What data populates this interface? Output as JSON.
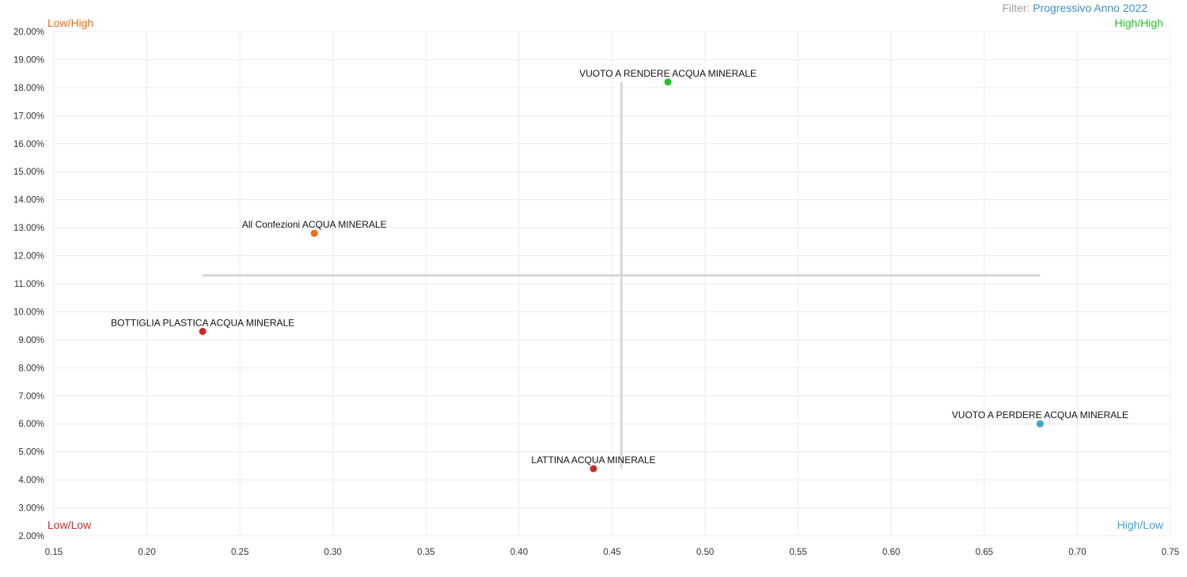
{
  "filter": {
    "label": "Filter:",
    "value": "Progressivo Anno 2022"
  },
  "chart_data": {
    "type": "scatter",
    "title": "",
    "xlabel": "",
    "ylabel": "",
    "xlim": [
      0.15,
      0.75
    ],
    "ylim": [
      0.02,
      0.2
    ],
    "x_ticks": [
      0.15,
      0.2,
      0.25,
      0.3,
      0.35,
      0.4,
      0.45,
      0.5,
      0.55,
      0.6,
      0.65,
      0.7,
      0.75
    ],
    "x_tick_labels": [
      "0.15",
      "0.20",
      "0.25",
      "0.30",
      "0.35",
      "0.40",
      "0.45",
      "0.50",
      "0.55",
      "0.60",
      "0.65",
      "0.70",
      "0.75"
    ],
    "y_ticks": [
      0.02,
      0.03,
      0.04,
      0.05,
      0.06,
      0.07,
      0.08,
      0.09,
      0.1,
      0.11,
      0.12,
      0.13,
      0.14,
      0.15,
      0.16,
      0.17,
      0.18,
      0.19,
      0.2
    ],
    "y_tick_labels": [
      "2.00%",
      "3.00%",
      "4.00%",
      "5.00%",
      "6.00%",
      "7.00%",
      "8.00%",
      "9.00%",
      "10.00%",
      "11.00%",
      "12.00%",
      "13.00%",
      "14.00%",
      "15.00%",
      "16.00%",
      "17.00%",
      "18.00%",
      "19.00%",
      "20.00%"
    ],
    "grid": true,
    "points": [
      {
        "label": "VUOTO A RENDERE ACQUA MINERALE",
        "x": 0.48,
        "y": 0.182,
        "color": "#22c322"
      },
      {
        "label": "All Confezioni ACQUA MINERALE",
        "x": 0.29,
        "y": 0.128,
        "color": "#f26a10"
      },
      {
        "label": "BOTTIGLIA PLASTICA ACQUA MINERALE",
        "x": 0.23,
        "y": 0.093,
        "color": "#cc2a2a"
      },
      {
        "label": "VUOTO A PERDERE ACQUA MINERALE",
        "x": 0.68,
        "y": 0.06,
        "color": "#3aa3d6"
      },
      {
        "label": "LATTINA ACQUA MINERALE",
        "x": 0.44,
        "y": 0.044,
        "color": "#cc2a2a"
      }
    ],
    "reference_lines": {
      "vertical_x": 0.455,
      "vertical_y_range": [
        0.044,
        0.182
      ],
      "horizontal_y": 0.113,
      "horizontal_x_range": [
        0.23,
        0.68
      ],
      "color": "#d6d6d6"
    },
    "quadrants": [
      {
        "label": "Low/High",
        "position": "top-left",
        "color": "#f26a10"
      },
      {
        "label": "High/High",
        "position": "top-right",
        "color": "#22c322"
      },
      {
        "label": "Low/Low",
        "position": "bottom-left",
        "color": "#cc2a2a"
      },
      {
        "label": "High/Low",
        "position": "bottom-right",
        "color": "#3aa3d6"
      }
    ]
  }
}
